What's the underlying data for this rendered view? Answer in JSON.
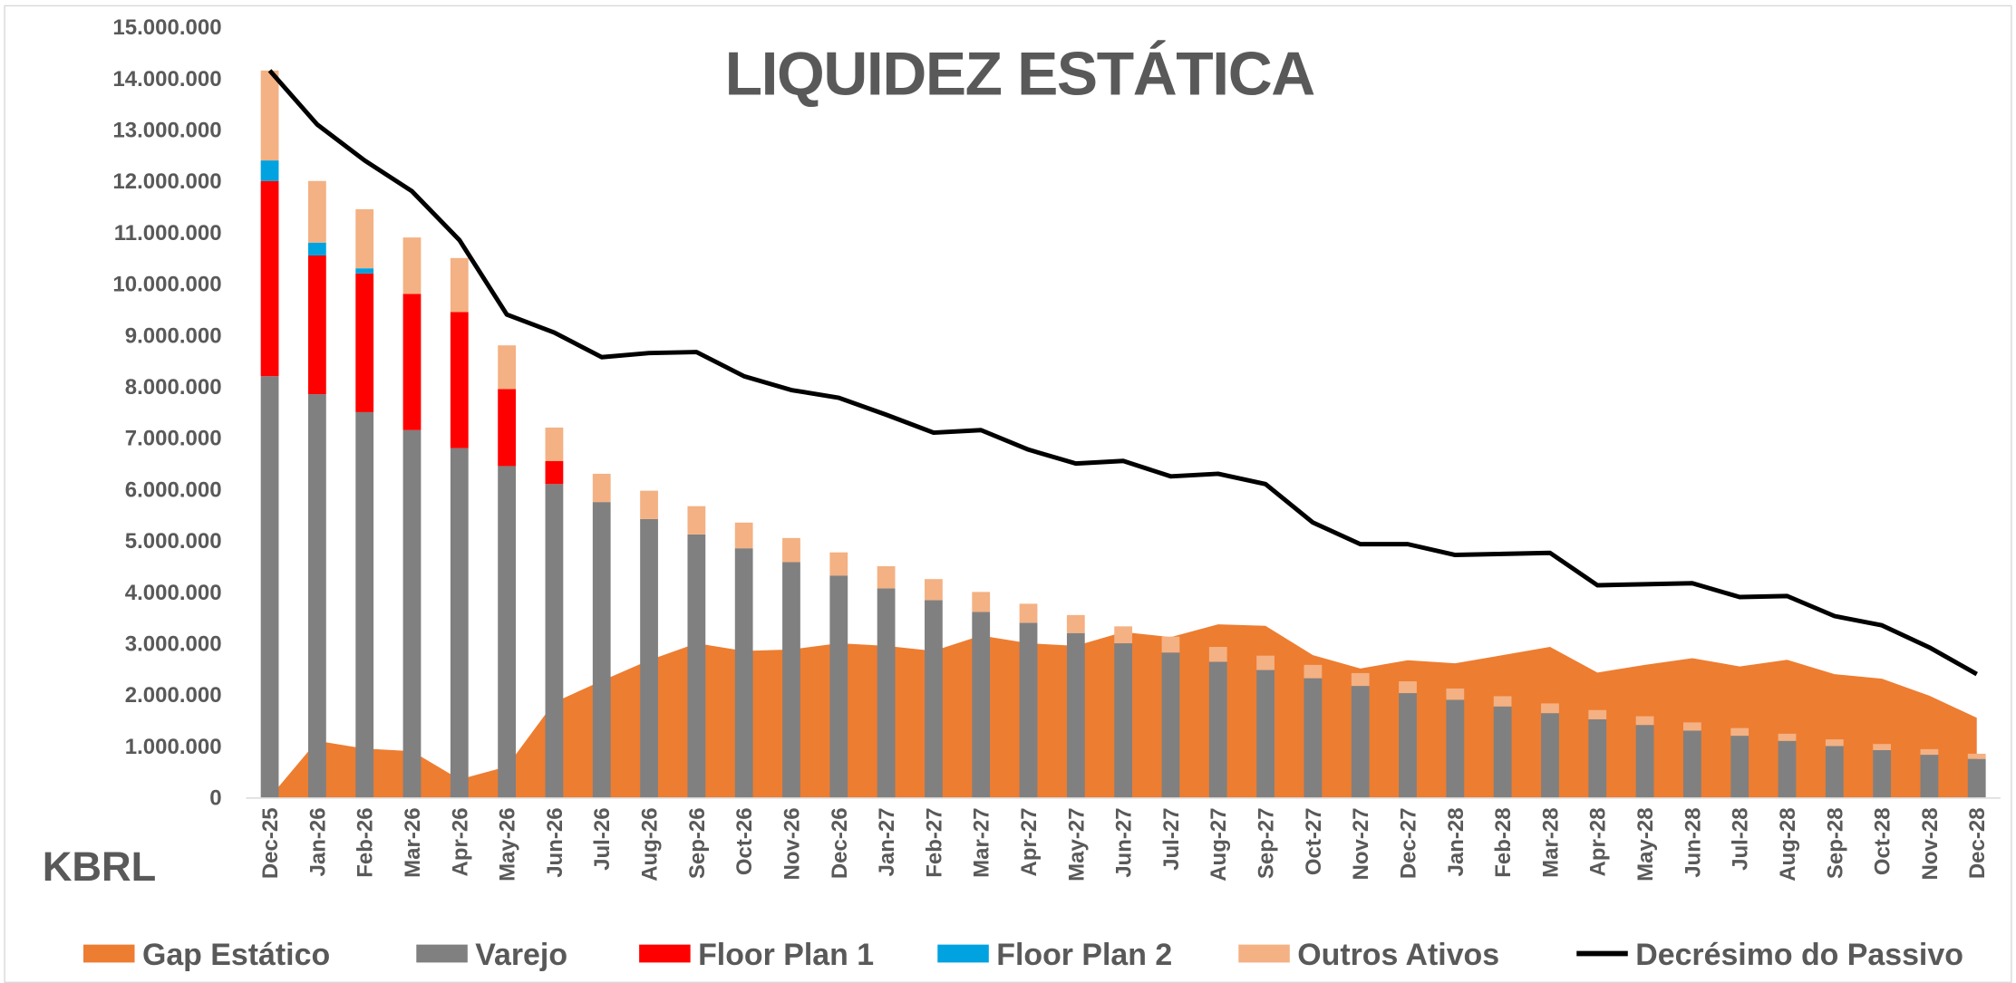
{
  "chart_data": {
    "type": "bar",
    "stacked": true,
    "title": "LIQUIDEZ ESTÁTICA",
    "logo": "KBRL",
    "categories": [
      "Dec-25",
      "Jan-26",
      "Feb-26",
      "Mar-26",
      "Apr-26",
      "May-26",
      "Jun-26",
      "Jul-26",
      "Aug-26",
      "Sep-26",
      "Oct-26",
      "Nov-26",
      "Dec-26",
      "Jan-27",
      "Feb-27",
      "Mar-27",
      "Apr-27",
      "May-27",
      "Jun-27",
      "Jul-27",
      "Aug-27",
      "Sep-27",
      "Oct-27",
      "Nov-27",
      "Dec-27",
      "Jan-28",
      "Feb-28",
      "Mar-28",
      "Apr-28",
      "May-28",
      "Jun-28",
      "Jul-28",
      "Aug-28",
      "Sep-28",
      "Oct-28",
      "Nov-28",
      "Dec-28"
    ],
    "series": [
      {
        "name": "Gap Estático",
        "type": "area",
        "color": "#ed7d31",
        "values": [
          0,
          1100000,
          950000,
          900000,
          350000,
          600000,
          1850000,
          2270000,
          2670000,
          3000000,
          2850000,
          2880000,
          3000000,
          2950000,
          2850000,
          3150000,
          3000000,
          2950000,
          3220000,
          3120000,
          3370000,
          3340000,
          2770000,
          2510000,
          2670000,
          2610000,
          2770000,
          2930000,
          2430000,
          2580000,
          2710000,
          2550000,
          2680000,
          2400000,
          2310000,
          1980000,
          1550000
        ]
      },
      {
        "name": "Varejo",
        "type": "bar",
        "color": "#808080",
        "values": [
          8200000,
          7850000,
          7500000,
          7150000,
          6800000,
          6450000,
          6100000,
          5750000,
          5420000,
          5120000,
          4850000,
          4580000,
          4320000,
          4070000,
          3840000,
          3610000,
          3400000,
          3200000,
          3000000,
          2820000,
          2640000,
          2480000,
          2320000,
          2170000,
          2030000,
          1900000,
          1770000,
          1640000,
          1520000,
          1410000,
          1300000,
          1200000,
          1100000,
          1000000,
          920000,
          830000,
          750000
        ]
      },
      {
        "name": "Floor Plan 1",
        "type": "bar",
        "color": "#ff0000",
        "values": [
          3800000,
          2700000,
          2700000,
          2650000,
          2650000,
          1500000,
          450000,
          0,
          0,
          0,
          0,
          0,
          0,
          0,
          0,
          0,
          0,
          0,
          0,
          0,
          0,
          0,
          0,
          0,
          0,
          0,
          0,
          0,
          0,
          0,
          0,
          0,
          0,
          0,
          0,
          0,
          0
        ]
      },
      {
        "name": "Floor Plan 2",
        "type": "bar",
        "color": "#00a2e0",
        "values": [
          400000,
          250000,
          100000,
          0,
          0,
          0,
          0,
          0,
          0,
          0,
          0,
          0,
          0,
          0,
          0,
          0,
          0,
          0,
          0,
          0,
          0,
          0,
          0,
          0,
          0,
          0,
          0,
          0,
          0,
          0,
          0,
          0,
          0,
          0,
          0,
          0,
          0
        ]
      },
      {
        "name": "Outros Ativos",
        "type": "bar",
        "color": "#f4b183",
        "values": [
          1750000,
          1200000,
          1150000,
          1100000,
          1050000,
          850000,
          650000,
          550000,
          550000,
          550000,
          500000,
          470000,
          450000,
          430000,
          410000,
          390000,
          370000,
          350000,
          330000,
          310000,
          290000,
          280000,
          260000,
          250000,
          230000,
          220000,
          200000,
          190000,
          180000,
          170000,
          160000,
          150000,
          140000,
          130000,
          120000,
          110000,
          100000
        ]
      },
      {
        "name": "Decrésimo do Passivo",
        "type": "line",
        "color": "#000000",
        "values": [
          14150000,
          13100000,
          12400000,
          11800000,
          10850000,
          9400000,
          9050000,
          8570000,
          8650000,
          8670000,
          8200000,
          7930000,
          7780000,
          7450000,
          7100000,
          7150000,
          6770000,
          6500000,
          6550000,
          6250000,
          6300000,
          6100000,
          5350000,
          4930000,
          4930000,
          4720000,
          4740000,
          4760000,
          4130000,
          4150000,
          4170000,
          3900000,
          3920000,
          3530000,
          3350000,
          2920000,
          2400000
        ]
      }
    ],
    "ylim": [
      0,
      15000000
    ],
    "yticks": [
      0,
      {
        "value": 1000000,
        "label": "1.000.000"
      },
      {
        "value": 2000000,
        "label": "2.000.000"
      },
      {
        "value": 3000000,
        "label": "3.000.000"
      },
      {
        "value": 4000000,
        "label": "4.000.000"
      },
      {
        "value": 5000000,
        "label": "5.000.000"
      },
      {
        "value": 6000000,
        "label": "6.000.000"
      },
      {
        "value": 7000000,
        "label": "7.000.000"
      },
      {
        "value": 8000000,
        "label": "8.000.000"
      },
      {
        "value": 9000000,
        "label": "9.000.000"
      },
      {
        "value": 10000000,
        "label": "10.000.000"
      },
      {
        "value": 11000000,
        "label": "11.000.000"
      },
      {
        "value": 12000000,
        "label": "12.000.000"
      },
      {
        "value": 13000000,
        "label": "13.000.000"
      },
      {
        "value": 14000000,
        "label": "14.000.000"
      },
      {
        "value": 15000000,
        "label": "15.000.000"
      }
    ],
    "grid": false,
    "legend": "bottom"
  }
}
